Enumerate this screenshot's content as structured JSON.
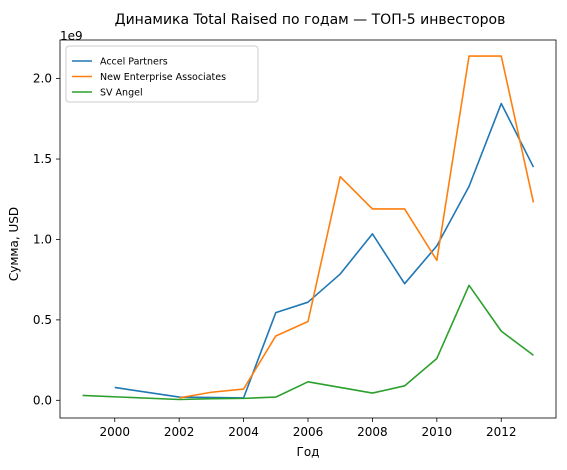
{
  "chart_data": {
    "type": "line",
    "title": "Динамика Total Raised по годам — ТОП-5 инвесторов",
    "xlabel": "Год",
    "ylabel": "Сумма, USD",
    "y_offset_label": "1e9",
    "xlim": [
      1998.3,
      2013.7
    ],
    "ylim": [
      -0.11,
      2.24
    ],
    "x_ticks": [
      2000,
      2002,
      2004,
      2006,
      2008,
      2010,
      2012
    ],
    "x_tick_labels": [
      "2000",
      "2002",
      "2004",
      "2006",
      "2008",
      "2010",
      "2012"
    ],
    "y_ticks": [
      0.0,
      0.5,
      1.0,
      1.5,
      2.0
    ],
    "y_tick_labels": [
      "0.0",
      "0.5",
      "1.0",
      "1.5",
      "2.0"
    ],
    "grid": false,
    "legend_position": "top-left",
    "series": [
      {
        "name": "Accel Partners",
        "color": "#1f77b4",
        "x": [
          2000,
          2002,
          2004,
          2005,
          2006,
          2007,
          2008,
          2009,
          2010,
          2011,
          2012,
          2013
        ],
        "y": [
          0.08,
          0.02,
          0.015,
          0.545,
          0.61,
          0.785,
          1.035,
          0.725,
          0.96,
          1.33,
          1.845,
          1.45
        ]
      },
      {
        "name": "New Enterprise Associates",
        "color": "#ff7f0e",
        "x": [
          2002,
          2003,
          2004,
          2005,
          2006,
          2007,
          2008,
          2009,
          2010,
          2011,
          2012,
          2013
        ],
        "y": [
          0.015,
          0.05,
          0.07,
          0.4,
          0.49,
          1.39,
          1.19,
          1.19,
          0.87,
          2.14,
          2.14,
          1.23
        ]
      },
      {
        "name": "SV Angel",
        "color": "#2ca02c",
        "x": [
          1999,
          2002,
          2003,
          2004,
          2005,
          2006,
          2007,
          2008,
          2009,
          2010,
          2011,
          2012,
          2013
        ],
        "y": [
          0.03,
          0.005,
          0.01,
          0.012,
          0.02,
          0.115,
          0.08,
          0.045,
          0.09,
          0.26,
          0.715,
          0.43,
          0.28
        ]
      }
    ]
  }
}
